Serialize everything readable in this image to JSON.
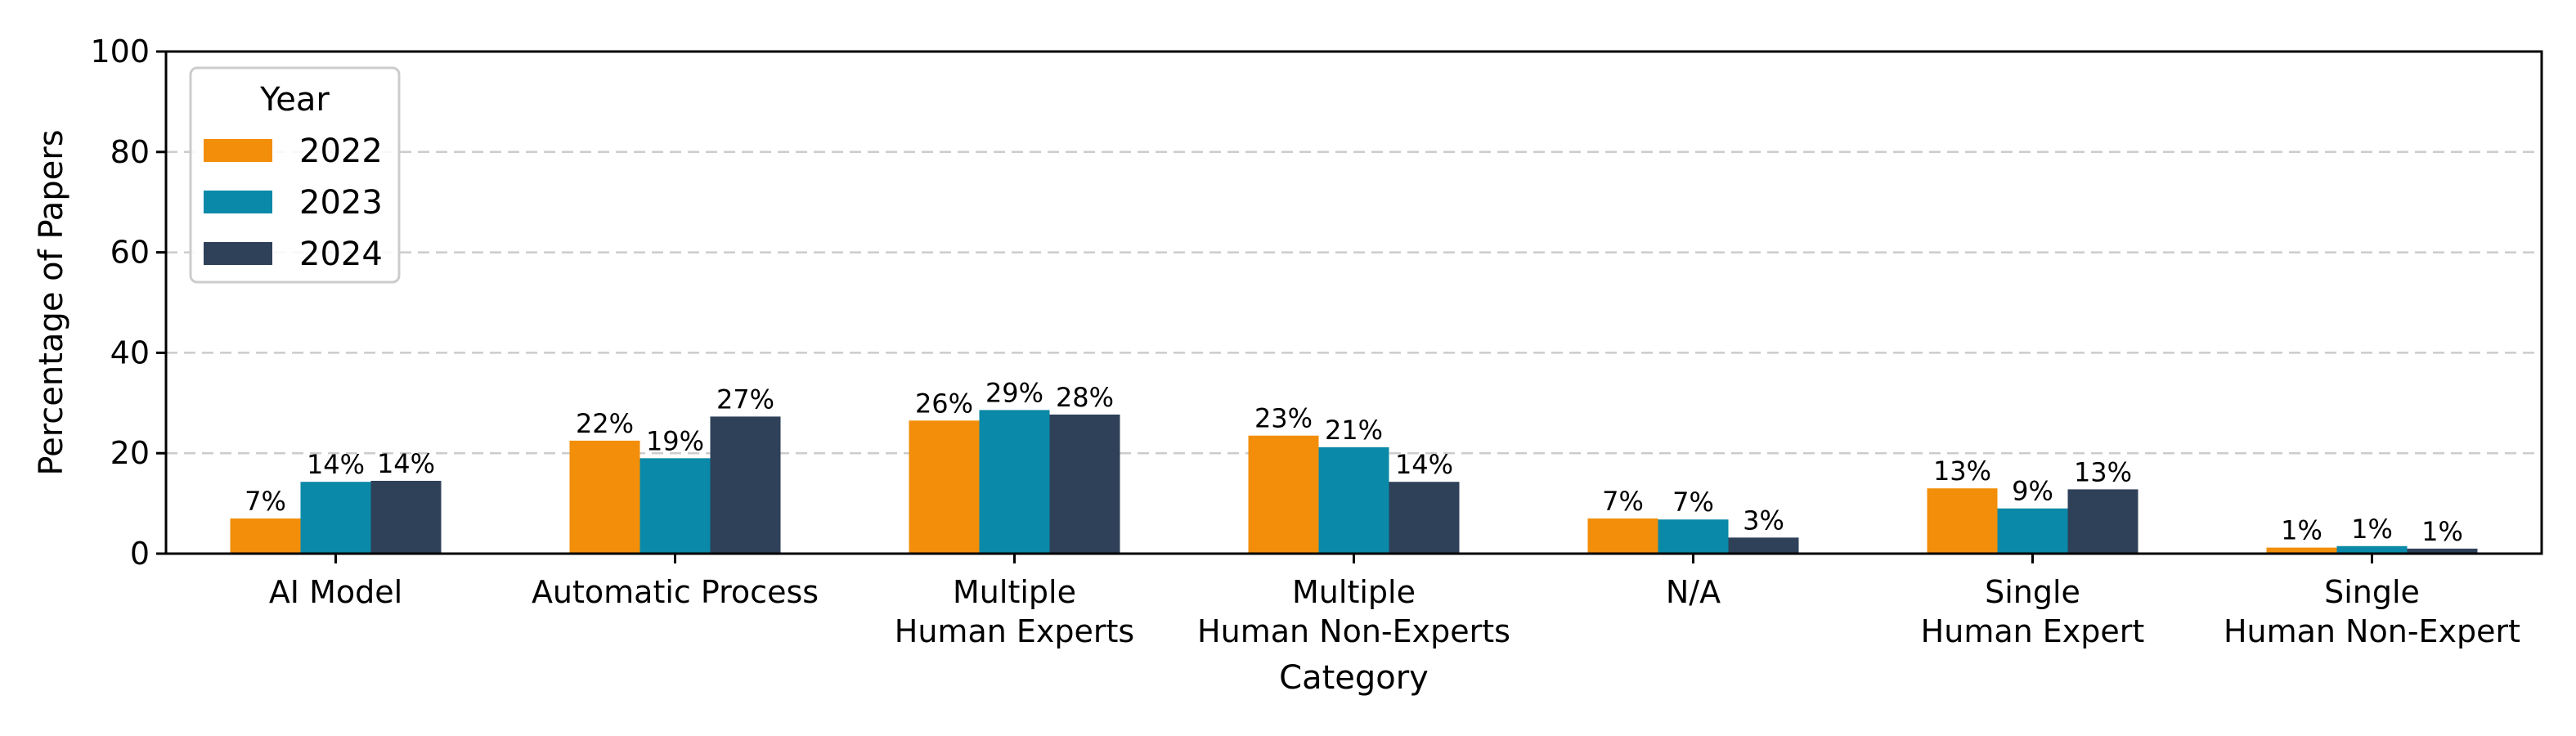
{
  "chart_data": {
    "type": "bar",
    "title": "",
    "xlabel": "Category",
    "ylabel": "Percentage of Papers",
    "ylim": [
      0,
      100
    ],
    "yticks": [
      0,
      20,
      40,
      60,
      80,
      100
    ],
    "grid": "horizontal dashed",
    "categories": [
      [
        "AI Model"
      ],
      [
        "Automatic Process"
      ],
      [
        "Multiple",
        "Human Experts"
      ],
      [
        "Multiple",
        "Human Non-Experts"
      ],
      [
        "N/A"
      ],
      [
        "Single",
        "Human Expert"
      ],
      [
        "Single",
        "Human Non-Expert"
      ]
    ],
    "series": [
      {
        "name": "2022",
        "color": "#F28E0A",
        "values": [
          7,
          22.5,
          26.5,
          23.5,
          7,
          13,
          1.2
        ],
        "labels": [
          "7%",
          "22%",
          "26%",
          "23%",
          "7%",
          "13%",
          "1%"
        ]
      },
      {
        "name": "2023",
        "color": "#0A89A8",
        "values": [
          14.3,
          19,
          28.6,
          21.2,
          6.8,
          9,
          1.5
        ],
        "labels": [
          "14%",
          "19%",
          "29%",
          "21%",
          "7%",
          "9%",
          "1%"
        ]
      },
      {
        "name": "2024",
        "color": "#2F4159",
        "values": [
          14.5,
          27.3,
          27.7,
          14.3,
          3.2,
          12.8,
          1
        ],
        "labels": [
          "14%",
          "27%",
          "28%",
          "14%",
          "3%",
          "13%",
          "1%"
        ]
      }
    ],
    "legend": {
      "title": "Year",
      "position": "top-left"
    }
  }
}
